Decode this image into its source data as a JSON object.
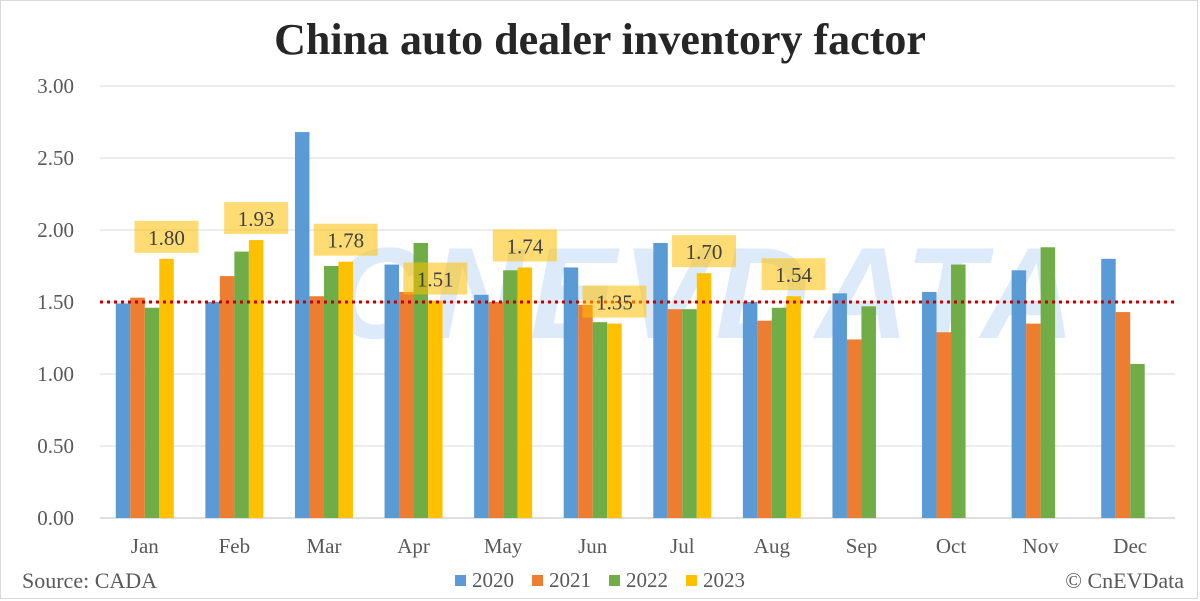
{
  "chart_data": {
    "type": "bar",
    "title": "China auto dealer inventory factor",
    "categories": [
      "Jan",
      "Feb",
      "Mar",
      "Apr",
      "May",
      "Jun",
      "Jul",
      "Aug",
      "Sep",
      "Oct",
      "Nov",
      "Dec"
    ],
    "series": [
      {
        "name": "2020",
        "color": "#5b9bd5",
        "values": [
          1.49,
          1.5,
          2.68,
          1.76,
          1.55,
          1.74,
          1.91,
          1.5,
          1.56,
          1.57,
          1.72,
          1.8
        ]
      },
      {
        "name": "2021",
        "color": "#ed7d31",
        "values": [
          1.53,
          1.68,
          1.54,
          1.57,
          1.5,
          1.48,
          1.45,
          1.37,
          1.24,
          1.29,
          1.35,
          1.43
        ]
      },
      {
        "name": "2022",
        "color": "#70ad47",
        "values": [
          1.46,
          1.85,
          1.75,
          1.91,
          1.72,
          1.36,
          1.45,
          1.46,
          1.47,
          1.76,
          1.88,
          1.07
        ]
      },
      {
        "name": "2023",
        "color": "#ffc000",
        "values": [
          1.8,
          1.93,
          1.78,
          1.51,
          1.74,
          1.35,
          1.7,
          1.54,
          null,
          null,
          null,
          null
        ]
      }
    ],
    "data_labels": [
      "1.80",
      "1.93",
      "1.78",
      "1.51",
      "1.74",
      "1.35",
      "1.70",
      "1.54"
    ],
    "y_ticks": [
      "0.00",
      "0.50",
      "1.00",
      "1.50",
      "2.00",
      "2.50",
      "3.00"
    ],
    "ylim": [
      0,
      3
    ],
    "reference_line": {
      "value": 1.5,
      "color": "#c00000",
      "style": "dotted"
    },
    "grid": true,
    "legend_position": "bottom"
  },
  "footer": {
    "source": "Source: CADA",
    "copyright": "© CnEVData"
  },
  "watermark": "CNEVDATA"
}
